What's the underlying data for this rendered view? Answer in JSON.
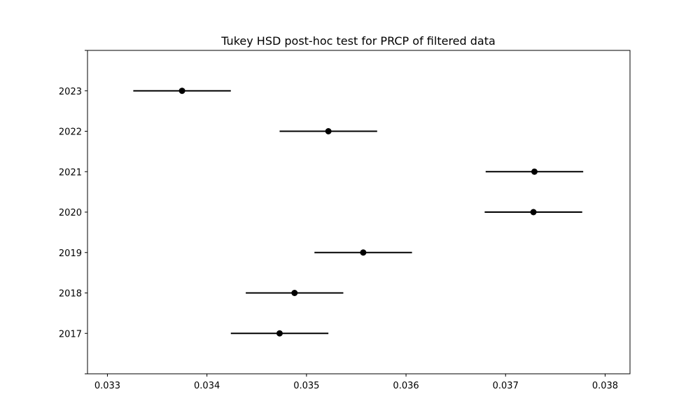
{
  "chart_data": {
    "type": "errorbar",
    "title": "Tukey HSD post-hoc test for PRCP of filtered data",
    "xlabel": "",
    "ylabel": "",
    "xlim": [
      0.0328,
      0.03825
    ],
    "x_ticks": [
      "0.033",
      "0.034",
      "0.035",
      "0.036",
      "0.037",
      "0.038"
    ],
    "x_tick_values": [
      0.033,
      0.034,
      0.035,
      0.036,
      0.037,
      0.038
    ],
    "grid": false,
    "legend": "none",
    "groups": [
      {
        "label": "2023",
        "mean": 0.03375,
        "lower": 0.03326,
        "upper": 0.03424
      },
      {
        "label": "2022",
        "mean": 0.03522,
        "lower": 0.03473,
        "upper": 0.03571
      },
      {
        "label": "2021",
        "mean": 0.03729,
        "lower": 0.0368,
        "upper": 0.03778
      },
      {
        "label": "2020",
        "mean": 0.03728,
        "lower": 0.03679,
        "upper": 0.03777
      },
      {
        "label": "2019",
        "mean": 0.03557,
        "lower": 0.03508,
        "upper": 0.03606
      },
      {
        "label": "2018",
        "mean": 0.03488,
        "lower": 0.03439,
        "upper": 0.03537
      },
      {
        "label": "2017",
        "mean": 0.03473,
        "lower": 0.03424,
        "upper": 0.03522
      }
    ],
    "colors": {
      "marker": "#000000",
      "line": "#000000",
      "axes": "#000000"
    }
  }
}
